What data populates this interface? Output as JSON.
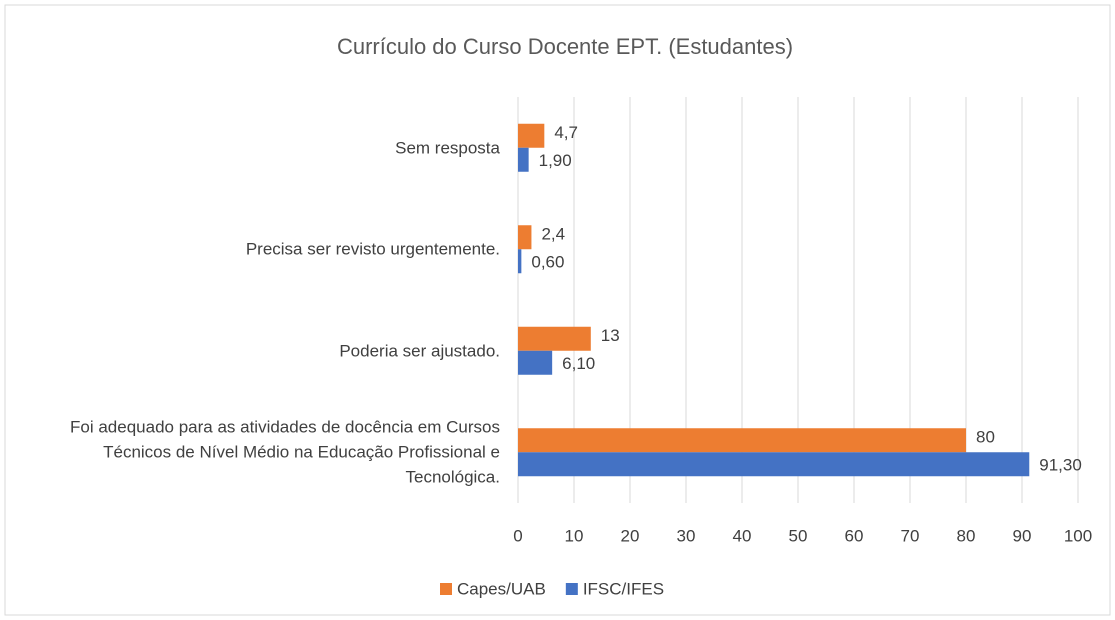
{
  "chart_data": {
    "type": "hbar",
    "title": "Currículo do Curso Docente EPT. (Estudantes)",
    "categories": [
      "Sem resposta",
      "Precisa ser revisto urgentemente.",
      "Poderia ser ajustado.",
      "Foi adequado para as atividades de docência em Cursos Técnicos de Nível Médio na Educação Profissional e Tecnológica."
    ],
    "series": [
      {
        "name": "Capes/UAB",
        "color": "#ed7d31",
        "values": [
          4.7,
          2.4,
          13,
          80
        ],
        "value_labels": [
          "4,7",
          "2,4",
          "13",
          "80"
        ]
      },
      {
        "name": "IFSC/IFES",
        "color": "#4472c4",
        "values": [
          1.9,
          0.6,
          6.1,
          91.3
        ],
        "value_labels": [
          "1,90",
          "0,60",
          "6,10",
          "91,30"
        ]
      }
    ],
    "xlim": [
      0,
      100
    ],
    "xticks": [
      0,
      10,
      20,
      30,
      40,
      50,
      60,
      70,
      80,
      90,
      100
    ],
    "grid": true,
    "legend": "bottom"
  }
}
